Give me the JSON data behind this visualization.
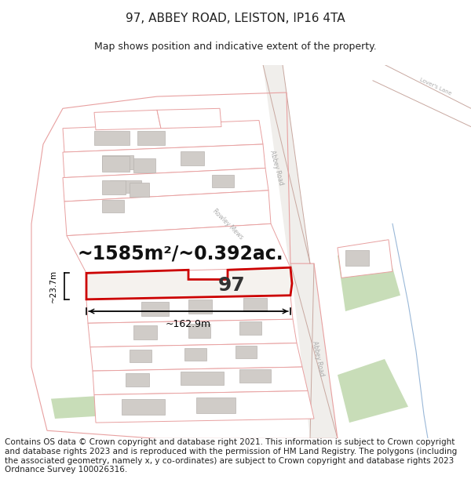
{
  "title": "97, ABBEY ROAD, LEISTON, IP16 4TA",
  "subtitle": "Map shows position and indicative extent of the property.",
  "area_text": "~1585m²/~0.392ac.",
  "width_label": "~162.9m",
  "height_label": "~23.7m",
  "property_number": "97",
  "footer_text": "Contains OS data © Crown copyright and database right 2021. This information is subject to Crown copyright and database rights 2023 and is reproduced with the permission of HM Land Registry. The polygons (including the associated geometry, namely x, y co-ordinates) are subject to Crown copyright and database rights 2023 Ordnance Survey 100026316.",
  "bg_color": "#ffffff",
  "map_bg": "#f8f6f3",
  "green_color": "#c8ddb8",
  "road_line_color": "#c8a8a0",
  "plot_ec": "#e8a0a0",
  "plot_fc": "#ffffff",
  "bldg_fc": "#d0ccc8",
  "bldg_ec": "#b8b4b0",
  "road_strip_color": "#e0e0e0",
  "road_label_color": "#aaaaaa",
  "highlight_color": "#cc0000",
  "blue_line_color": "#9ab8d8",
  "text_color": "#222222",
  "title_fontsize": 11,
  "subtitle_fontsize": 9,
  "footer_fontsize": 7.5,
  "area_fontsize": 17,
  "num_fontsize": 18
}
